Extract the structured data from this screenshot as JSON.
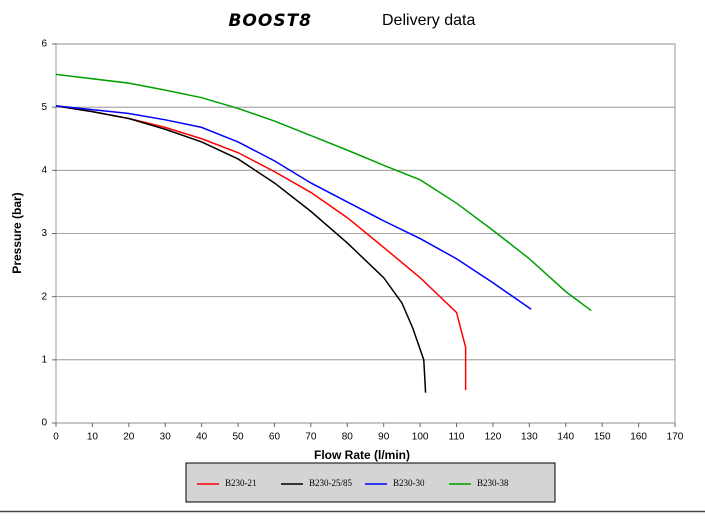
{
  "chart_data": {
    "type": "line",
    "title_logo": "BOOST8",
    "title": "Delivery data",
    "x_label": "Flow Rate (l/min)",
    "y_label": "Pressure (bar)",
    "xlim": [
      0,
      170
    ],
    "xticks": [
      0,
      10,
      20,
      30,
      40,
      50,
      60,
      70,
      80,
      90,
      100,
      110,
      120,
      130,
      140,
      150,
      160,
      170
    ],
    "ylim": [
      0,
      6
    ],
    "yticks": [
      0,
      1,
      2,
      3,
      4,
      5,
      6
    ],
    "grid": true,
    "legend": "bottom",
    "series": [
      {
        "name": "B230-21",
        "color": "#ff0000",
        "x": [
          0,
          10,
          20,
          30,
          40,
          50,
          60,
          70,
          80,
          90,
          100,
          110,
          112.5,
          112.5
        ],
        "values": [
          5.02,
          4.93,
          4.82,
          4.68,
          4.5,
          4.28,
          3.98,
          3.65,
          3.25,
          2.78,
          2.3,
          1.75,
          1.2,
          0.52
        ]
      },
      {
        "name": "B230-25/85",
        "color": "#000000",
        "x": [
          0,
          10,
          20,
          30,
          40,
          50,
          60,
          70,
          80,
          90,
          95,
          98,
          101,
          101.5
        ],
        "values": [
          5.02,
          4.93,
          4.82,
          4.65,
          4.45,
          4.18,
          3.8,
          3.35,
          2.85,
          2.3,
          1.9,
          1.5,
          1.0,
          0.48
        ]
      },
      {
        "name": "B230-30",
        "color": "#0000ff",
        "x": [
          0,
          20,
          30,
          40,
          50,
          60,
          70,
          80,
          90,
          100,
          110,
          120,
          130.5
        ],
        "values": [
          5.02,
          4.9,
          4.8,
          4.68,
          4.45,
          4.15,
          3.8,
          3.5,
          3.2,
          2.92,
          2.6,
          2.22,
          1.8
        ]
      },
      {
        "name": "B230-38",
        "color": "#00a000",
        "x": [
          0,
          20,
          30,
          40,
          50,
          60,
          70,
          80,
          90,
          100,
          110,
          120,
          130,
          140,
          147
        ],
        "values": [
          5.52,
          5.38,
          5.27,
          5.15,
          4.98,
          4.78,
          4.55,
          4.32,
          4.08,
          3.85,
          3.48,
          3.05,
          2.6,
          2.08,
          1.78
        ]
      }
    ]
  }
}
